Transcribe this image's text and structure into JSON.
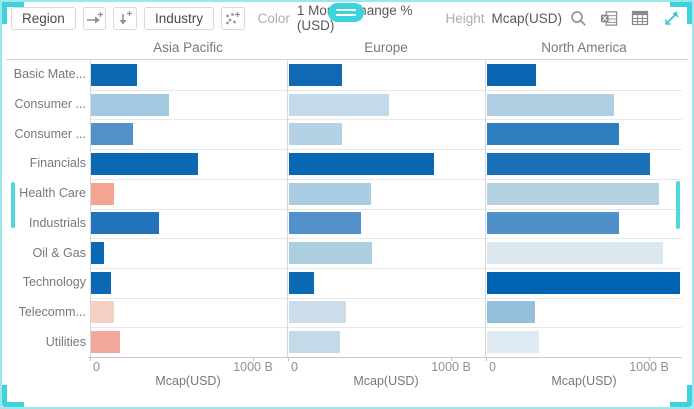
{
  "toolbar": {
    "region_button": "Region",
    "industry_button": "Industry",
    "color_label": "Color",
    "color_value": "1 Month Change % (USD)",
    "height_label": "Height",
    "height_value": "Mcap(USD)"
  },
  "icons": {
    "add_breakdown": "arrow-right-plus",
    "add_drilldown": "arrow-down-plus",
    "add_scatter": "scatter-dots-plus",
    "search": "magnifier",
    "excel_export": "spreadsheet-x",
    "table": "grid-table",
    "expand": "diagonal-resize-arrow",
    "menu_handle": "two-line-handle"
  },
  "colors": {
    "teal_accent": "#3ed2da",
    "selection_border": "#9ae7ec",
    "axis_text": "#8d9196",
    "label_text": "#75797e",
    "grid_line": "#e9e9e9",
    "panel_line": "#d7d7d7"
  },
  "chart_data": {
    "type": "bar",
    "orientation": "horizontal",
    "title": "",
    "xlabel": "Mcap(USD)",
    "ylabel": "",
    "xlim": [
      0,
      1200
    ],
    "x_tick_values": [
      0,
      1000
    ],
    "x_tick_labels": [
      "0",
      "1000 B"
    ],
    "grid": true,
    "panels": [
      "Asia Pacific",
      "Europe",
      "North America"
    ],
    "categories": [
      "Basic Mate...",
      "Consumer ...",
      "Consumer ...",
      "Financials",
      "Health Care",
      "Industrials",
      "Oil & Gas",
      "Technology",
      "Telecomm...",
      "Utilities"
    ],
    "units": "billions USD",
    "color_encoding": "1 Month Change % (USD): blue = positive, red = negative",
    "series": [
      {
        "name": "Asia Pacific",
        "values": [
          280,
          480,
          260,
          660,
          140,
          420,
          80,
          120,
          140,
          180
        ],
        "colors": [
          "#0b68b3",
          "#a3c8e1",
          "#5390c8",
          "#0b68b3",
          "#f5a492",
          "#2273bb",
          "#0b68b3",
          "#0b68b3",
          "#f6cfc5",
          "#f2a89a"
        ]
      },
      {
        "name": "Europe",
        "values": [
          325,
          615,
          325,
          890,
          505,
          440,
          510,
          155,
          350,
          315
        ],
        "colors": [
          "#1168b3",
          "#c2daea",
          "#b4d1e5",
          "#0767b2",
          "#a8cce1",
          "#5190c8",
          "#accfdf",
          "#0c69b4",
          "#cddeea",
          "#c4dae8"
        ]
      },
      {
        "name": "North America",
        "values": [
          300,
          780,
          815,
          1000,
          1060,
          810,
          1080,
          1190,
          295,
          320
        ],
        "colors": [
          "#0a66b2",
          "#b0cfe3",
          "#2e7ec0",
          "#1a71b8",
          "#b5d2e3",
          "#4f90c8",
          "#dce8f0",
          "#0063b1",
          "#93bfdb",
          "#dfeaf2"
        ]
      }
    ]
  }
}
